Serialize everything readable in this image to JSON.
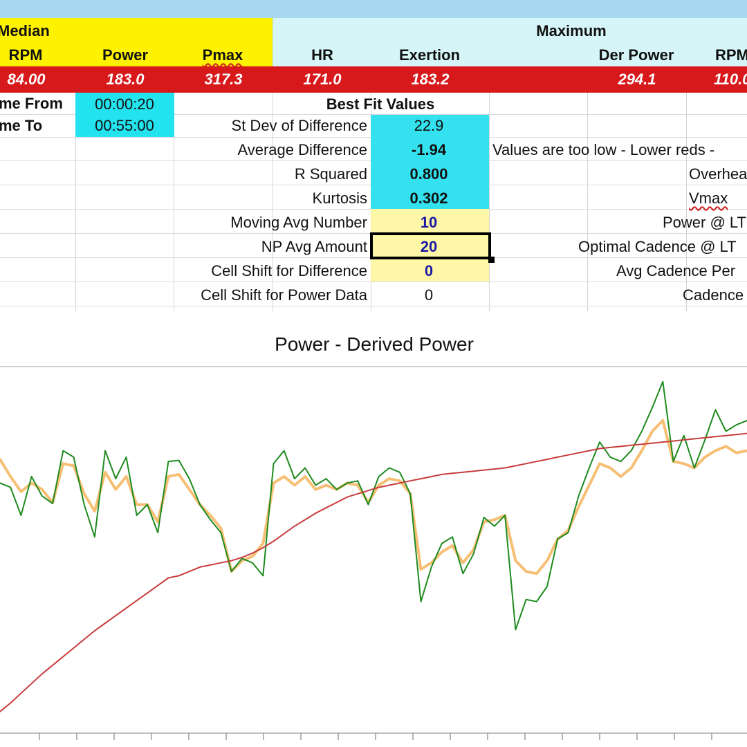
{
  "header": {
    "median_label": "Median",
    "maximum_label": "Maximum",
    "columns": [
      {
        "label": "RPM",
        "value": "84.00"
      },
      {
        "label": "Power",
        "value": "183.0"
      },
      {
        "label": "Pmax",
        "value": "317.3"
      },
      {
        "label": "HR",
        "value": "171.0"
      },
      {
        "label": "Exertion",
        "value": "183.2"
      },
      {
        "label": "Der Power",
        "value": "294.1"
      },
      {
        "label": "RPM",
        "value": "110.0"
      }
    ]
  },
  "time": {
    "from_label": "me From",
    "from_value": "00:00:20",
    "to_label": "me To",
    "to_value": "00:55:00"
  },
  "best_fit": {
    "title": "Best Fit Values",
    "rows": [
      {
        "label": "St Dev of Difference",
        "value": "22.9"
      },
      {
        "label": "Average Difference",
        "value": "-1.94"
      },
      {
        "label": "R Squared",
        "value": "0.800"
      },
      {
        "label": "Kurtosis",
        "value": "0.302"
      }
    ]
  },
  "settings": {
    "rows": [
      {
        "label": "Moving Avg Number",
        "value": "10"
      },
      {
        "label": "NP Avg Amount",
        "value": "20"
      },
      {
        "label": "Cell Shift for Difference",
        "value": "0"
      },
      {
        "label": "Cell Shift for Power Data",
        "value": "0"
      }
    ]
  },
  "right_labels": {
    "message": "Values are too low - Lower reds -",
    "overhead": "Overhea",
    "vmax": "Vmax",
    "power_lt": "Power @ LT",
    "optimal_cadence": "Optimal Cadence @ LT",
    "avg_cadence": "Avg Cadence Per",
    "cadence": "Cadence"
  },
  "chart_data": {
    "type": "line",
    "title": "Power - Derived Power",
    "series": [
      {
        "color": "#1e8a1e",
        "values": [
          232,
          228,
          202,
          238,
          220,
          213,
          262,
          256,
          212,
          182,
          262,
          236,
          256,
          202,
          212,
          186,
          252,
          253,
          236,
          212,
          198,
          186,
          150,
          162,
          158,
          146,
          250,
          262,
          236,
          246,
          230,
          236,
          226,
          232,
          234,
          212,
          238,
          246,
          242,
          222,
          122,
          154,
          176,
          182,
          148,
          166,
          200,
          192,
          202,
          96,
          124,
          122,
          136,
          180,
          186,
          220,
          246,
          270,
          256,
          252,
          262,
          280,
          302,
          326,
          252,
          276,
          246,
          272,
          300,
          280,
          286,
          290
        ]
      },
      {
        "color": "#f5b865",
        "values": [
          254,
          238,
          224,
          232,
          226,
          214,
          250,
          248,
          222,
          206,
          242,
          226,
          238,
          212,
          212,
          196,
          238,
          240,
          226,
          212,
          202,
          190,
          150,
          160,
          164,
          176,
          232,
          238,
          230,
          238,
          226,
          230,
          226,
          232,
          230,
          214,
          230,
          236,
          234,
          222,
          152,
          158,
          168,
          174,
          158,
          170,
          196,
          198,
          202,
          160,
          150,
          148,
          160,
          180,
          188,
          210,
          230,
          250,
          246,
          238,
          246,
          262,
          280,
          290,
          252,
          250,
          246,
          256,
          262,
          266,
          260,
          262
        ]
      },
      {
        "color": "#c83c3c",
        "values": [
          20,
          28,
          37,
          46,
          55,
          63,
          71,
          79,
          87,
          95,
          102,
          109,
          116,
          123,
          130,
          137,
          144,
          146,
          150,
          154,
          156,
          158,
          160,
          163,
          167,
          172,
          178,
          185,
          192,
          198,
          204,
          209,
          214,
          219,
          222,
          225,
          228,
          230,
          232,
          234,
          236,
          238,
          240,
          241,
          242,
          243,
          244,
          245,
          246,
          248,
          250,
          252,
          254,
          256,
          258,
          260,
          262,
          264,
          265,
          266,
          267,
          268,
          269,
          270,
          271,
          272,
          273,
          274,
          275,
          276,
          277,
          278
        ]
      }
    ],
    "grid": true
  }
}
